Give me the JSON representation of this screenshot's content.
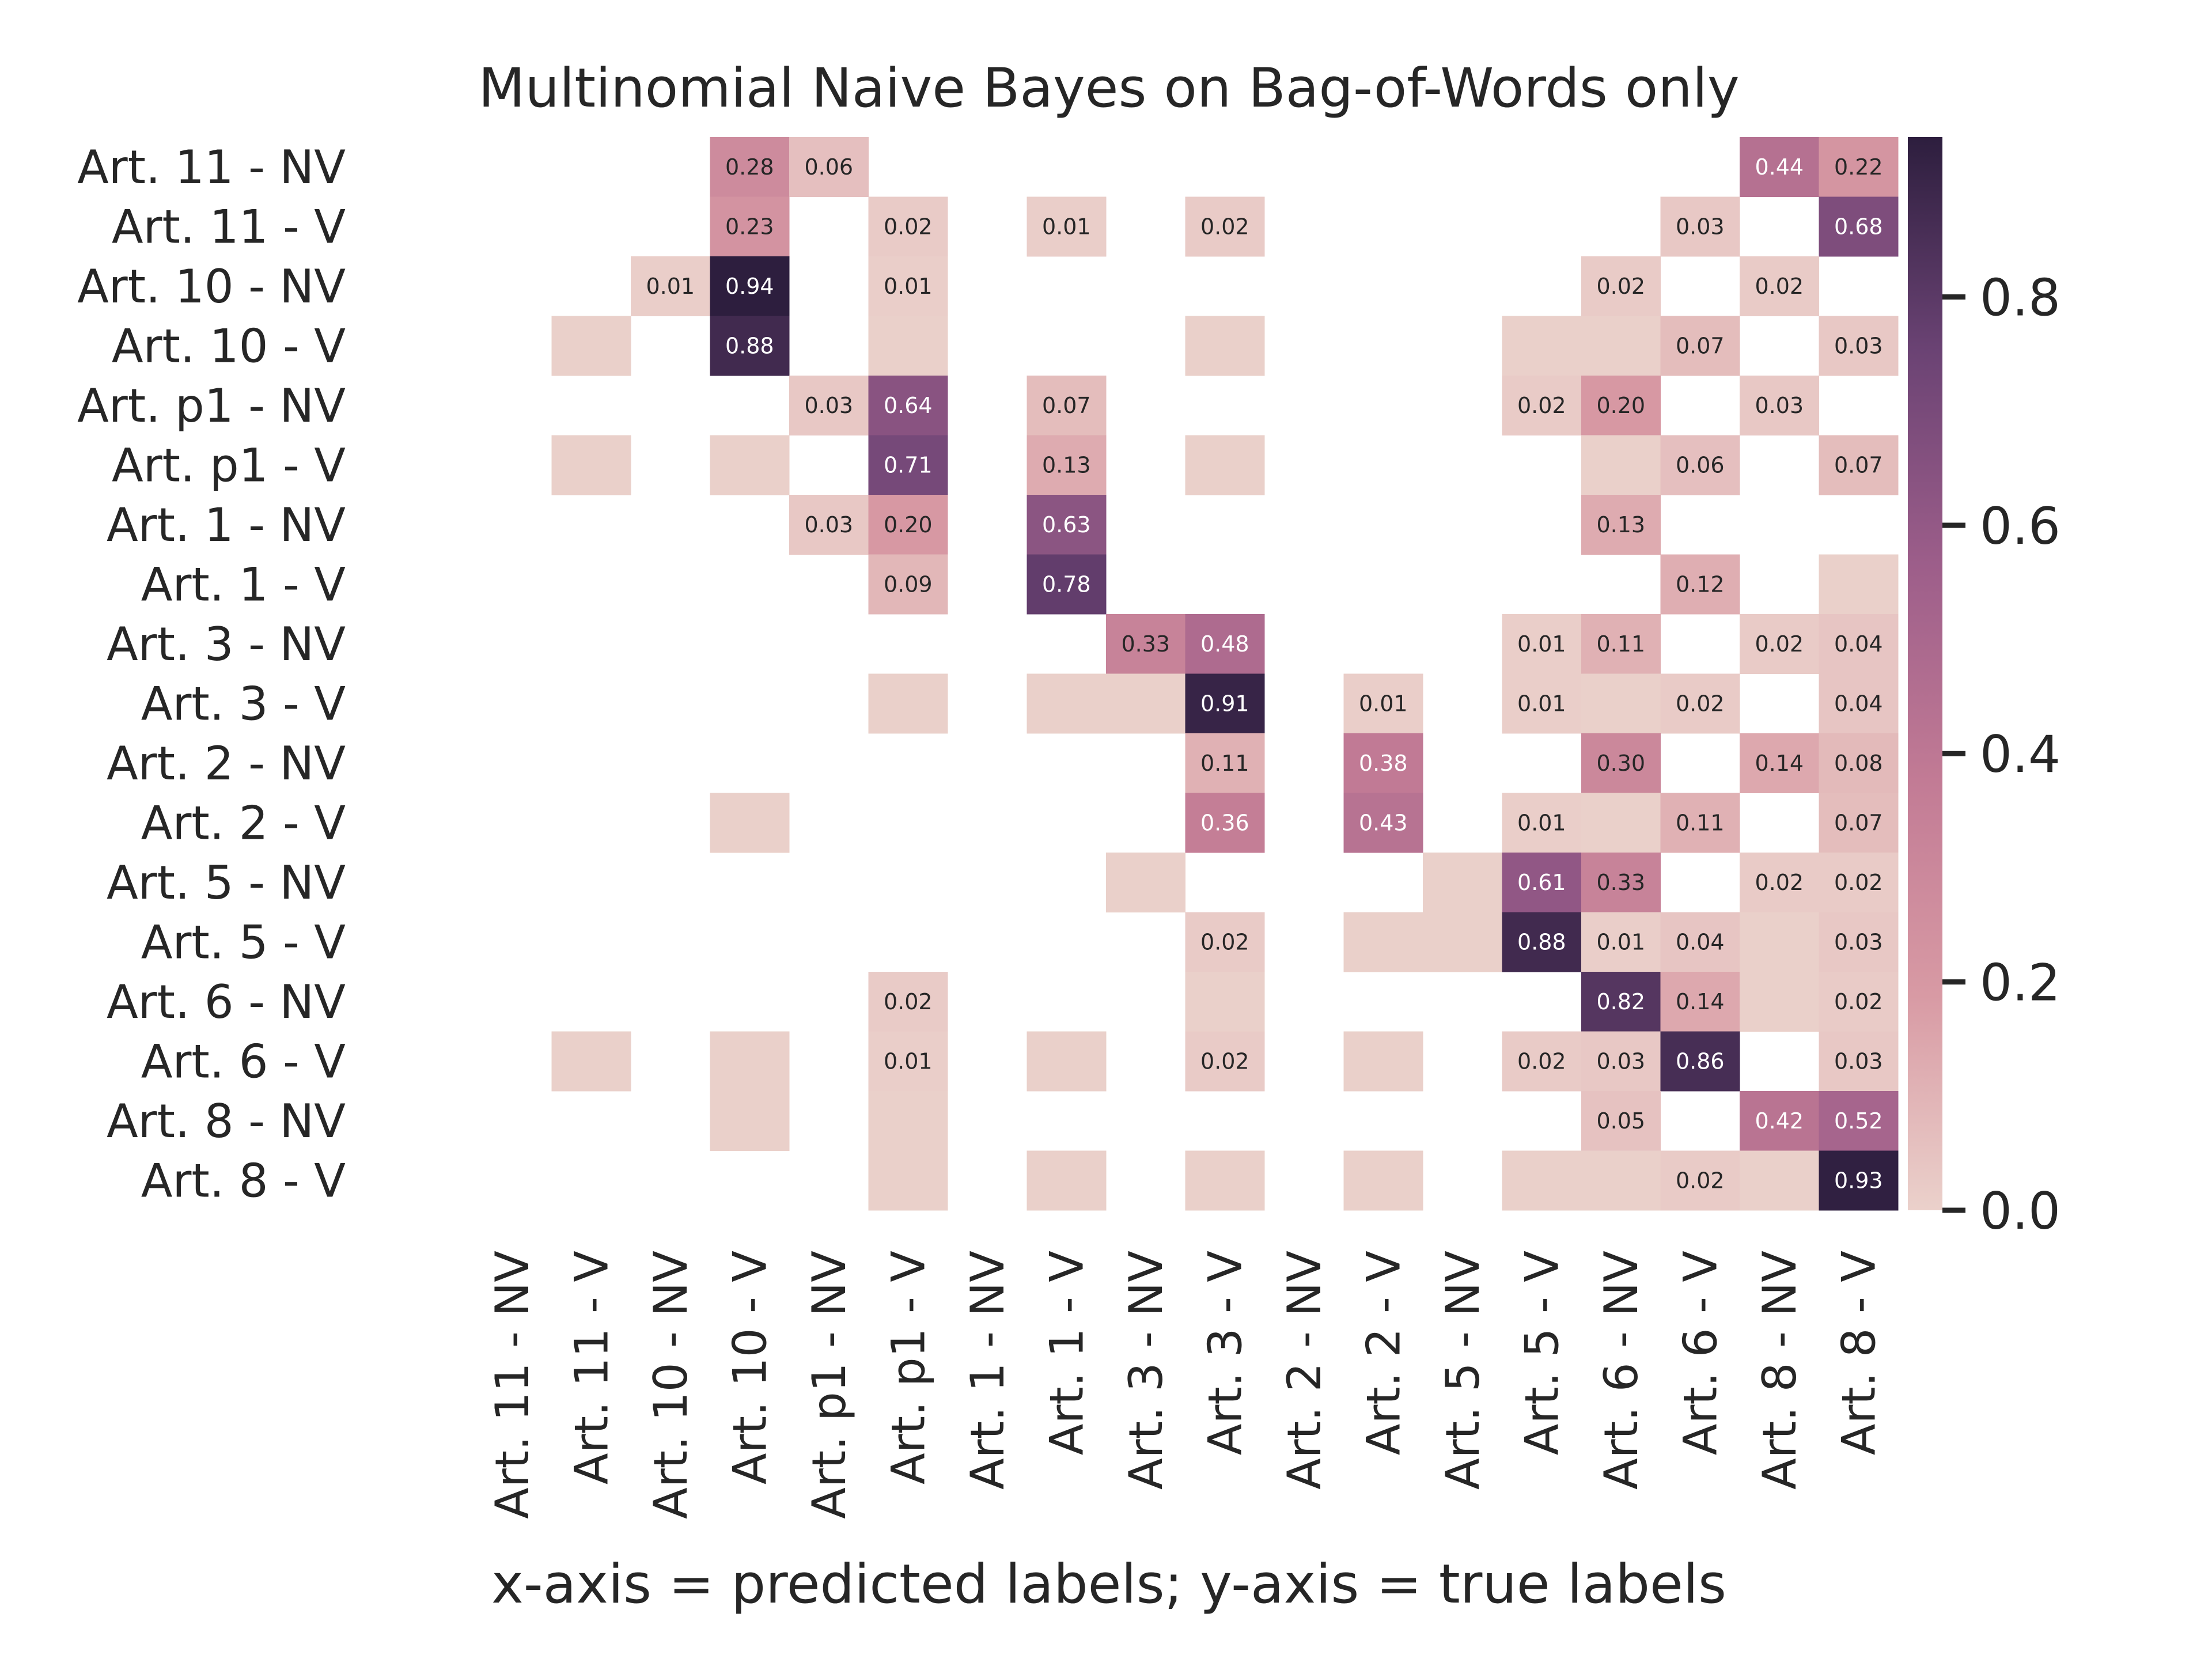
{
  "chart_data": {
    "type": "heatmap",
    "title": "Multinomial Naive Bayes on Bag-of-Words only",
    "xlabel": "x-axis = predicted labels; y-axis = true labels",
    "ylabel": "",
    "rows": [
      "Art. 11 - NV",
      "Art. 11 - V",
      "Art. 10 - NV",
      "Art. 10 - V",
      "Art. p1 - NV",
      "Art. p1 - V",
      "Art. 1 - NV",
      "Art. 1 - V",
      "Art. 3 - NV",
      "Art. 3 - V",
      "Art. 2 - NV",
      "Art. 2 - V",
      "Art. 5 - NV",
      "Art. 5 - V",
      "Art. 6 - NV",
      "Art. 6 - V",
      "Art. 8 - NV",
      "Art. 8 - V"
    ],
    "columns": [
      "Art. 11 - NV",
      "Art. 11 - V",
      "Art. 10 - NV",
      "Art. 10 - V",
      "Art. p1 - NV",
      "Art. p1 - V",
      "Art. 1 - NV",
      "Art. 1 - V",
      "Art. 3 - NV",
      "Art. 3 - V",
      "Art. 2 - NV",
      "Art. 2 - V",
      "Art. 5 - NV",
      "Art. 5 - V",
      "Art. 6 - NV",
      "Art. 6 - V",
      "Art. 8 - NV",
      "Art. 8 - V"
    ],
    "cells": [
      [
        0,
        3,
        0.28,
        "0.28"
      ],
      [
        0,
        4,
        0.06,
        "0.06"
      ],
      [
        0,
        16,
        0.44,
        "0.44"
      ],
      [
        0,
        17,
        0.22,
        "0.22"
      ],
      [
        1,
        3,
        0.23,
        "0.23"
      ],
      [
        1,
        5,
        0.02,
        "0.02"
      ],
      [
        1,
        7,
        0.01,
        "0.01"
      ],
      [
        1,
        9,
        0.02,
        "0.02"
      ],
      [
        1,
        15,
        0.03,
        "0.03"
      ],
      [
        1,
        17,
        0.68,
        "0.68"
      ],
      [
        2,
        2,
        0.01,
        "0.01"
      ],
      [
        2,
        3,
        0.94,
        "0.94"
      ],
      [
        2,
        5,
        0.01,
        "0.01"
      ],
      [
        2,
        14,
        0.02,
        "0.02"
      ],
      [
        2,
        16,
        0.02,
        "0.02"
      ],
      [
        3,
        1,
        0.005,
        ""
      ],
      [
        3,
        3,
        0.88,
        "0.88"
      ],
      [
        3,
        5,
        0.005,
        ""
      ],
      [
        3,
        9,
        0.005,
        ""
      ],
      [
        3,
        13,
        0.005,
        ""
      ],
      [
        3,
        14,
        0.005,
        ""
      ],
      [
        3,
        15,
        0.07,
        "0.07"
      ],
      [
        3,
        17,
        0.03,
        "0.03"
      ],
      [
        4,
        4,
        0.03,
        "0.03"
      ],
      [
        4,
        5,
        0.64,
        "0.64"
      ],
      [
        4,
        7,
        0.07,
        "0.07"
      ],
      [
        4,
        13,
        0.02,
        "0.02"
      ],
      [
        4,
        14,
        0.2,
        "0.20"
      ],
      [
        4,
        16,
        0.03,
        "0.03"
      ],
      [
        5,
        1,
        0.005,
        ""
      ],
      [
        5,
        3,
        0.005,
        ""
      ],
      [
        5,
        5,
        0.71,
        "0.71"
      ],
      [
        5,
        7,
        0.13,
        "0.13"
      ],
      [
        5,
        9,
        0.005,
        ""
      ],
      [
        5,
        14,
        0.005,
        ""
      ],
      [
        5,
        15,
        0.06,
        "0.06"
      ],
      [
        5,
        17,
        0.07,
        "0.07"
      ],
      [
        6,
        4,
        0.03,
        "0.03"
      ],
      [
        6,
        5,
        0.2,
        "0.20"
      ],
      [
        6,
        7,
        0.63,
        "0.63"
      ],
      [
        6,
        14,
        0.13,
        "0.13"
      ],
      [
        7,
        5,
        0.09,
        "0.09"
      ],
      [
        7,
        7,
        0.78,
        "0.78"
      ],
      [
        7,
        15,
        0.12,
        "0.12"
      ],
      [
        7,
        17,
        0.005,
        ""
      ],
      [
        8,
        8,
        0.33,
        "0.33"
      ],
      [
        8,
        9,
        0.48,
        "0.48"
      ],
      [
        8,
        13,
        0.01,
        "0.01"
      ],
      [
        8,
        14,
        0.11,
        "0.11"
      ],
      [
        8,
        16,
        0.02,
        "0.02"
      ],
      [
        8,
        17,
        0.04,
        "0.04"
      ],
      [
        9,
        5,
        0.005,
        ""
      ],
      [
        9,
        7,
        0.005,
        ""
      ],
      [
        9,
        8,
        0.005,
        ""
      ],
      [
        9,
        9,
        0.91,
        "0.91"
      ],
      [
        9,
        11,
        0.01,
        "0.01"
      ],
      [
        9,
        13,
        0.01,
        "0.01"
      ],
      [
        9,
        14,
        0.005,
        ""
      ],
      [
        9,
        15,
        0.02,
        "0.02"
      ],
      [
        9,
        17,
        0.04,
        "0.04"
      ],
      [
        10,
        9,
        0.11,
        "0.11"
      ],
      [
        10,
        11,
        0.38,
        "0.38"
      ],
      [
        10,
        14,
        0.3,
        "0.30"
      ],
      [
        10,
        16,
        0.14,
        "0.14"
      ],
      [
        10,
        17,
        0.08,
        "0.08"
      ],
      [
        11,
        3,
        0.005,
        ""
      ],
      [
        11,
        9,
        0.36,
        "0.36"
      ],
      [
        11,
        11,
        0.43,
        "0.43"
      ],
      [
        11,
        13,
        0.01,
        "0.01"
      ],
      [
        11,
        14,
        0.005,
        ""
      ],
      [
        11,
        15,
        0.11,
        "0.11"
      ],
      [
        11,
        17,
        0.07,
        "0.07"
      ],
      [
        12,
        8,
        0.005,
        ""
      ],
      [
        12,
        12,
        0.005,
        ""
      ],
      [
        12,
        13,
        0.61,
        "0.61"
      ],
      [
        12,
        14,
        0.33,
        "0.33"
      ],
      [
        12,
        16,
        0.02,
        "0.02"
      ],
      [
        12,
        17,
        0.02,
        "0.02"
      ],
      [
        13,
        9,
        0.02,
        "0.02"
      ],
      [
        13,
        11,
        0.005,
        ""
      ],
      [
        13,
        12,
        0.005,
        ""
      ],
      [
        13,
        13,
        0.88,
        "0.88"
      ],
      [
        13,
        14,
        0.01,
        "0.01"
      ],
      [
        13,
        15,
        0.04,
        "0.04"
      ],
      [
        13,
        16,
        0.005,
        ""
      ],
      [
        13,
        17,
        0.03,
        "0.03"
      ],
      [
        14,
        5,
        0.02,
        "0.02"
      ],
      [
        14,
        9,
        0.005,
        ""
      ],
      [
        14,
        14,
        0.82,
        "0.82"
      ],
      [
        14,
        15,
        0.14,
        "0.14"
      ],
      [
        14,
        16,
        0.005,
        ""
      ],
      [
        14,
        17,
        0.02,
        "0.02"
      ],
      [
        15,
        1,
        0.005,
        ""
      ],
      [
        15,
        3,
        0.005,
        ""
      ],
      [
        15,
        5,
        0.01,
        "0.01"
      ],
      [
        15,
        7,
        0.005,
        ""
      ],
      [
        15,
        9,
        0.02,
        "0.02"
      ],
      [
        15,
        11,
        0.005,
        ""
      ],
      [
        15,
        13,
        0.02,
        "0.02"
      ],
      [
        15,
        14,
        0.03,
        "0.03"
      ],
      [
        15,
        15,
        0.86,
        "0.86"
      ],
      [
        15,
        17,
        0.03,
        "0.03"
      ],
      [
        16,
        3,
        0.005,
        ""
      ],
      [
        16,
        5,
        0.005,
        ""
      ],
      [
        16,
        14,
        0.05,
        "0.05"
      ],
      [
        16,
        16,
        0.42,
        "0.42"
      ],
      [
        16,
        17,
        0.52,
        "0.52"
      ],
      [
        17,
        5,
        0.005,
        ""
      ],
      [
        17,
        7,
        0.005,
        ""
      ],
      [
        17,
        9,
        0.005,
        ""
      ],
      [
        17,
        11,
        0.005,
        ""
      ],
      [
        17,
        13,
        0.005,
        ""
      ],
      [
        17,
        14,
        0.005,
        ""
      ],
      [
        17,
        15,
        0.02,
        "0.02"
      ],
      [
        17,
        16,
        0.005,
        ""
      ],
      [
        17,
        17,
        0.93,
        "0.93"
      ]
    ],
    "colorbar": {
      "range": [
        0,
        0.94
      ],
      "ticks": [
        0.0,
        0.2,
        0.4,
        0.6,
        0.8
      ],
      "tick_labels": [
        "0.0",
        "0.2",
        "0.4",
        "0.6",
        "0.8"
      ]
    },
    "colormap": [
      "#ebd1cb",
      "#d89aa4",
      "#c27b95",
      "#9d5e8a",
      "#6b4374",
      "#2d1e3e"
    ],
    "grid": false,
    "legend": "colorbar-right"
  }
}
